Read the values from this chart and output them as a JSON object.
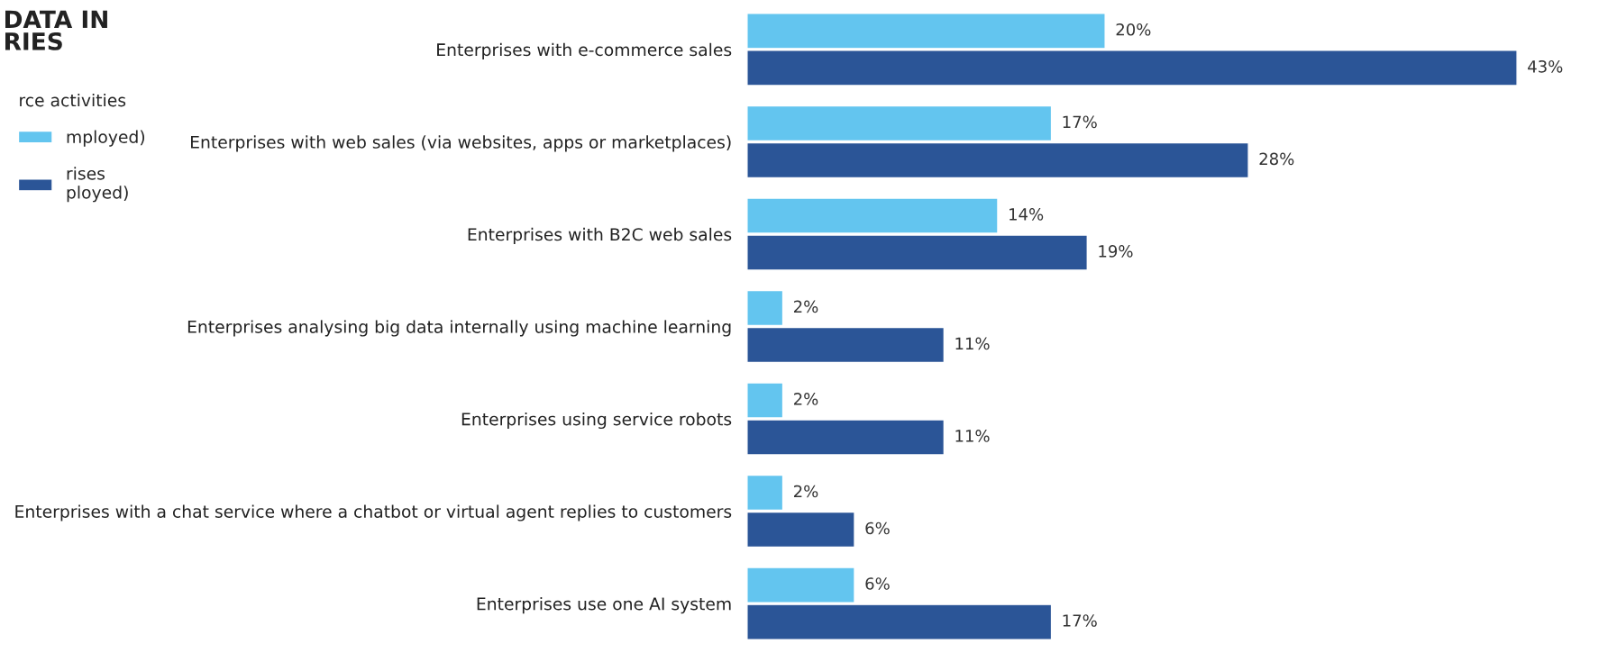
{
  "chart_data": {
    "type": "bar",
    "orientation": "horizontal",
    "title": "DATA IN\nRIES",
    "legend_title": "rce activities",
    "legend": "left",
    "tick_labels": "y",
    "grid": false,
    "categories": [
      "Enterprises with e-commerce sales",
      "Enterprises with web sales (via websites, apps or marketplaces)",
      "Enterprises with B2C web sales",
      "Enterprises analysing big data internally using machine learning",
      "Enterprises using service robots",
      "Enterprises with a chat service where a chatbot or virtual agent replies to customers",
      "Enterprises use one AI system"
    ],
    "series": [
      {
        "name": "mployed)",
        "color": "#63c5ef",
        "values": [
          20,
          17,
          14,
          2,
          2,
          2,
          6
        ],
        "value_labels": [
          "20%",
          "17%",
          "14%",
          "2%",
          "2%",
          "2%",
          "6%"
        ]
      },
      {
        "name": "rises\nployed)",
        "color": "#2b5597",
        "values": [
          43,
          28,
          19,
          11,
          11,
          6,
          17
        ],
        "value_labels": [
          "43%",
          "28%",
          "19%",
          "11%",
          "11%",
          "6%",
          "17%"
        ]
      }
    ]
  }
}
